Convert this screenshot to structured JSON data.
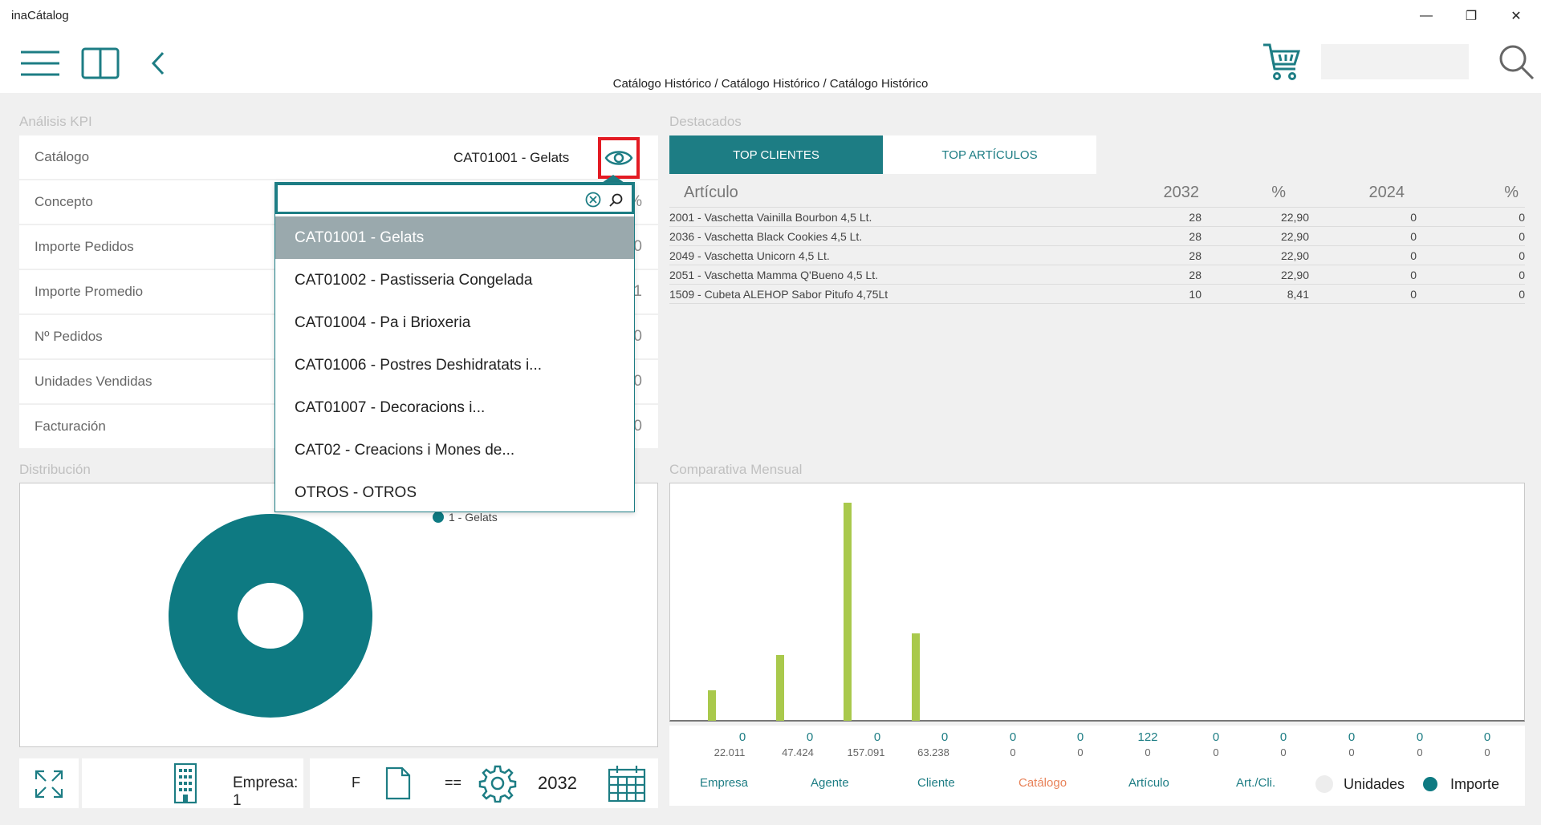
{
  "app": {
    "title": "inaCátalog"
  },
  "window": {
    "minimize": "—",
    "restore": "❐",
    "close": "✕"
  },
  "breadcrumb": "Catálogo Histórico / Catálogo Histórico / Catálogo Histórico",
  "colors": {
    "accent": "#1d7d84",
    "bar": "#a9c94c",
    "highlight": "#e31b23",
    "active_group": "#e8835a"
  },
  "kpi": {
    "section_title": "Análisis KPI",
    "catalog_label": "Catálogo",
    "catalog_value": "CAT01001 - Gelats",
    "rows": [
      {
        "label": "Concepto",
        "value": "%"
      },
      {
        "label": "Importe Pedidos",
        "value": "0"
      },
      {
        "label": "Importe Promedio",
        "value": "1"
      },
      {
        "label": "Nº Pedidos",
        "value": "0"
      },
      {
        "label": "Unidades Vendidas",
        "value": "0"
      },
      {
        "label": "Facturación",
        "value": "0"
      }
    ]
  },
  "dropdown": {
    "search_value": "",
    "items": [
      "CAT01001 - Gelats",
      "CAT01002 - Pastisseria Congelada",
      "CAT01004 - Pa i Brioxeria",
      "CAT01006 - Postres Deshidratats i...",
      "CAT01007 - Decoracions i...",
      "CAT02 - Creacions i Mones de...",
      "OTROS - OTROS"
    ],
    "selected_index": 0
  },
  "destacados": {
    "section_title": "Destacados",
    "tabs": [
      "TOP CLIENTES",
      "TOP ARTÍCULOS"
    ],
    "active_tab": 0,
    "headers": [
      "Artículo",
      "2032",
      "%",
      "2024",
      "%"
    ],
    "rows": [
      [
        "2001 - Vaschetta Vainilla Bourbon 4,5 Lt.",
        "28",
        "22,90",
        "0",
        "0"
      ],
      [
        "2036 - Vaschetta Black Cookies 4,5 Lt.",
        "28",
        "22,90",
        "0",
        "0"
      ],
      [
        "2049 - Vaschetta Unicorn 4,5 Lt.",
        "28",
        "22,90",
        "0",
        "0"
      ],
      [
        "2051 - Vaschetta Mamma Q'Bueno 4,5 Lt.",
        "28",
        "22,90",
        "0",
        "0"
      ],
      [
        "1509 - Cubeta ALEHOP Sabor Pitufo 4,75Lt",
        "10",
        "8,41",
        "0",
        "0"
      ]
    ]
  },
  "distribucion": {
    "section_title": "Distribución",
    "legend": "1 - Gelats"
  },
  "comparativa": {
    "section_title": "Comparativa Mensual",
    "importe": [
      "0",
      "0",
      "0",
      "0",
      "0",
      "0",
      "122",
      "0",
      "0",
      "0",
      "0",
      "0"
    ],
    "unidades": [
      "22.011",
      "47.424",
      "157.091",
      "63.238",
      "0",
      "0",
      "0",
      "0",
      "0",
      "0",
      "0",
      "0"
    ],
    "bar_values": [
      22011,
      47424,
      157091,
      63238,
      0,
      0,
      0,
      0,
      0,
      0,
      0,
      0
    ],
    "groups": [
      "Empresa",
      "Agente",
      "Cliente",
      "Catálogo",
      "Artículo",
      "Art./Cli."
    ],
    "active_group": 3,
    "modes": [
      "Unidades",
      "Importe"
    ],
    "active_mode": 1
  },
  "bottom": {
    "empresa": "Empresa: 1",
    "f_label": "F",
    "eq_label": "==",
    "year": "2032"
  },
  "icons": {
    "menu": "hamburger-icon",
    "book": "book-icon",
    "back": "chevron-left-icon",
    "cart": "cart-icon",
    "search": "search-icon",
    "eye": "eye-icon",
    "expand": "expand-icon",
    "building": "building-icon",
    "document": "document-icon",
    "gear": "gear-icon",
    "calendar": "calendar-icon"
  }
}
